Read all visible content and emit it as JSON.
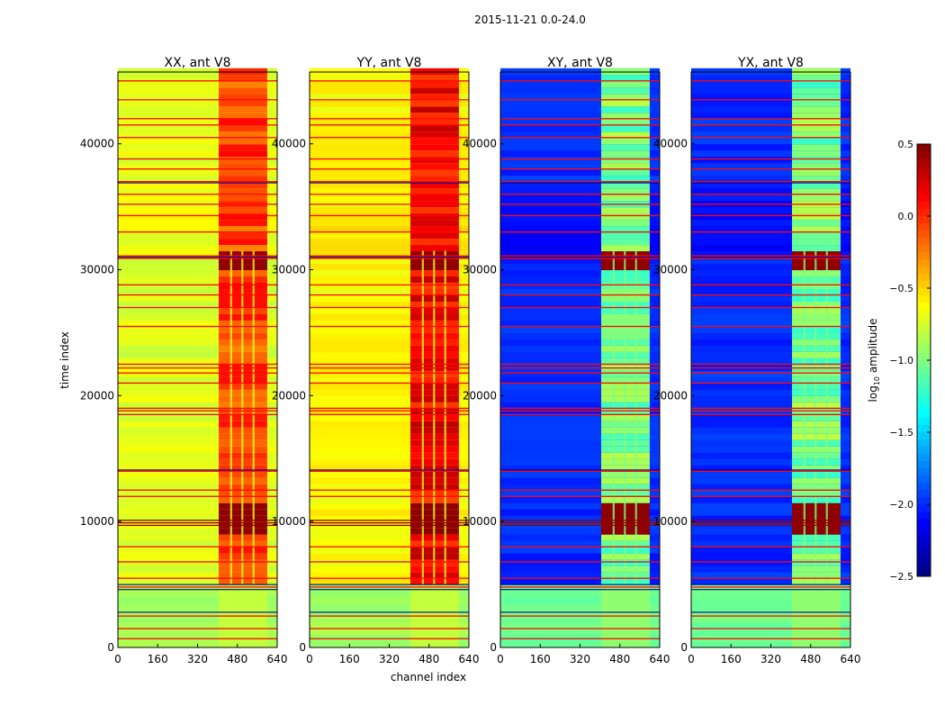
{
  "chart_data": {
    "type": "heatmap",
    "title": "2015-11-21 0.0-24.0",
    "xlabel": "channel index",
    "ylabel": "time index",
    "xlim": [
      0,
      640
    ],
    "ylim": [
      0,
      45700
    ],
    "xticks": [
      "0",
      "160",
      "320",
      "480",
      "640"
    ],
    "yticks": [
      "0",
      "10000",
      "20000",
      "30000",
      "40000"
    ],
    "xtick_values": [
      0,
      160,
      320,
      480,
      640
    ],
    "ytick_values": [
      0,
      10000,
      20000,
      30000,
      40000
    ],
    "hot_channel_range": [
      405,
      600
    ],
    "hot_channel_gaps": [
      455,
      500,
      545
    ],
    "bright_time_rows": [
      700,
      1500,
      2500,
      4800,
      5500,
      6800,
      8000,
      9700,
      9900,
      10100,
      12000,
      12500,
      14000,
      18500,
      18800,
      19000,
      21000,
      21800,
      22200,
      22500,
      25500,
      27000,
      28000,
      28800,
      30900,
      31100,
      33000,
      34300,
      35200,
      36000,
      37000,
      38000,
      38800,
      40500,
      41500,
      42000,
      43500,
      45000
    ],
    "dark_time_rows": [
      2800,
      4600,
      5000,
      14100,
      31000,
      36900
    ],
    "panels": [
      {
        "title": "XX, ant V8",
        "base_log_amp": -0.72,
        "band_log_amp": -0.15,
        "low_block_log_amp": -0.9
      },
      {
        "title": "YY, ant V8",
        "base_log_amp": -0.62,
        "band_log_amp": 0.05,
        "low_block_log_amp": -0.9
      },
      {
        "title": "XY, ant V8",
        "base_log_amp": -2.0,
        "band_log_amp": -1.1,
        "low_block_log_amp": -1.05
      },
      {
        "title": "YX, ant V8",
        "base_log_amp": -2.0,
        "band_log_amp": -1.1,
        "low_block_log_amp": -1.05
      }
    ],
    "colorbar": {
      "label": "log10 amplitude",
      "label_main": "log",
      "label_sub": "10",
      "label_rest": " amplitude",
      "range": [
        -2.5,
        0.5
      ],
      "ticks": [
        "0.5",
        "0.0",
        "−0.5",
        "−1.0",
        "−1.5",
        "−2.0",
        "−2.5"
      ],
      "tick_values": [
        0.5,
        0.0,
        -0.5,
        -1.0,
        -1.5,
        -2.0,
        -2.5
      ],
      "colormap": "jet"
    }
  }
}
